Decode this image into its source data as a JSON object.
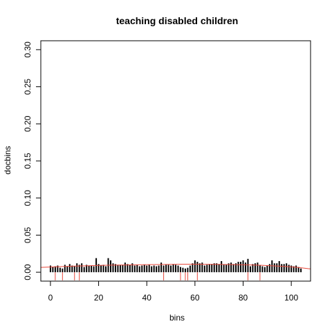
{
  "chart_data": {
    "type": "bar",
    "title": "teaching disabled children",
    "xlabel": "bins",
    "ylabel": "docbins",
    "xlim": [
      -4,
      108
    ],
    "ylim": [
      -0.012,
      0.312
    ],
    "x_ticks": [
      0,
      20,
      40,
      60,
      80,
      100
    ],
    "x_tick_labels": [
      "0",
      "20",
      "40",
      "60",
      "80",
      "100"
    ],
    "y_ticks": [
      0.0,
      0.05,
      0.1,
      0.15,
      0.2,
      0.25,
      0.3
    ],
    "y_tick_labels": [
      "0.00",
      "0.05",
      "0.10",
      "0.15",
      "0.20",
      "0.25",
      "0.30"
    ],
    "grid": false,
    "series": [
      {
        "style": "histogram-bars",
        "color": "#000000",
        "x": [
          0,
          1,
          2,
          3,
          4,
          5,
          6,
          7,
          8,
          9,
          10,
          11,
          12,
          13,
          14,
          15,
          16,
          17,
          18,
          19,
          20,
          21,
          22,
          23,
          24,
          25,
          26,
          27,
          28,
          29,
          30,
          31,
          32,
          33,
          34,
          35,
          36,
          37,
          38,
          39,
          40,
          41,
          42,
          43,
          44,
          45,
          46,
          47,
          48,
          49,
          50,
          51,
          52,
          53,
          54,
          55,
          56,
          57,
          58,
          59,
          60,
          61,
          62,
          63,
          64,
          65,
          66,
          67,
          68,
          69,
          70,
          71,
          72,
          73,
          74,
          75,
          76,
          77,
          78,
          79,
          80,
          81,
          82,
          83,
          84,
          85,
          86,
          87,
          88,
          89,
          90,
          91,
          92,
          93,
          94,
          95,
          96,
          97,
          98,
          99,
          100,
          101,
          102,
          103,
          104
        ],
        "values": [
          0.009,
          0.007,
          0.008,
          0.009,
          0.006,
          0.005,
          0.01,
          0.008,
          0.011,
          0.009,
          0.008,
          0.012,
          0.01,
          0.012,
          0.007,
          0.01,
          0.009,
          0.009,
          0.008,
          0.019,
          0.011,
          0.009,
          0.01,
          0.008,
          0.019,
          0.016,
          0.012,
          0.011,
          0.01,
          0.01,
          0.01,
          0.013,
          0.011,
          0.01,
          0.012,
          0.009,
          0.01,
          0.008,
          0.009,
          0.01,
          0.009,
          0.01,
          0.008,
          0.009,
          0.008,
          0.009,
          0.013,
          0.009,
          0.01,
          0.01,
          0.009,
          0.011,
          0.01,
          0.009,
          0.007,
          0.006,
          0.005,
          0.006,
          0.009,
          0.012,
          0.016,
          0.014,
          0.012,
          0.013,
          0.009,
          0.01,
          0.011,
          0.011,
          0.012,
          0.012,
          0.011,
          0.015,
          0.01,
          0.01,
          0.012,
          0.013,
          0.011,
          0.012,
          0.014,
          0.014,
          0.016,
          0.013,
          0.018,
          0.008,
          0.011,
          0.012,
          0.013,
          0.009,
          0.008,
          0.007,
          0.009,
          0.011,
          0.016,
          0.012,
          0.012,
          0.015,
          0.011,
          0.011,
          0.012,
          0.01,
          0.009,
          0.008,
          0.009,
          0.007,
          0.005
        ]
      },
      {
        "style": "smooth-line",
        "color": "#e8473a",
        "x": [
          -4,
          10,
          25,
          40,
          55,
          70,
          85,
          100,
          108
        ],
        "values": [
          0.0065,
          0.0082,
          0.0095,
          0.0102,
          0.0108,
          0.0106,
          0.0096,
          0.0072,
          0.0045
        ]
      },
      {
        "style": "rug-ticks",
        "color": "#e8473a",
        "x": [
          2,
          5,
          10,
          12,
          47,
          54,
          56,
          57,
          61,
          82,
          87
        ],
        "length": 0.011
      }
    ]
  }
}
